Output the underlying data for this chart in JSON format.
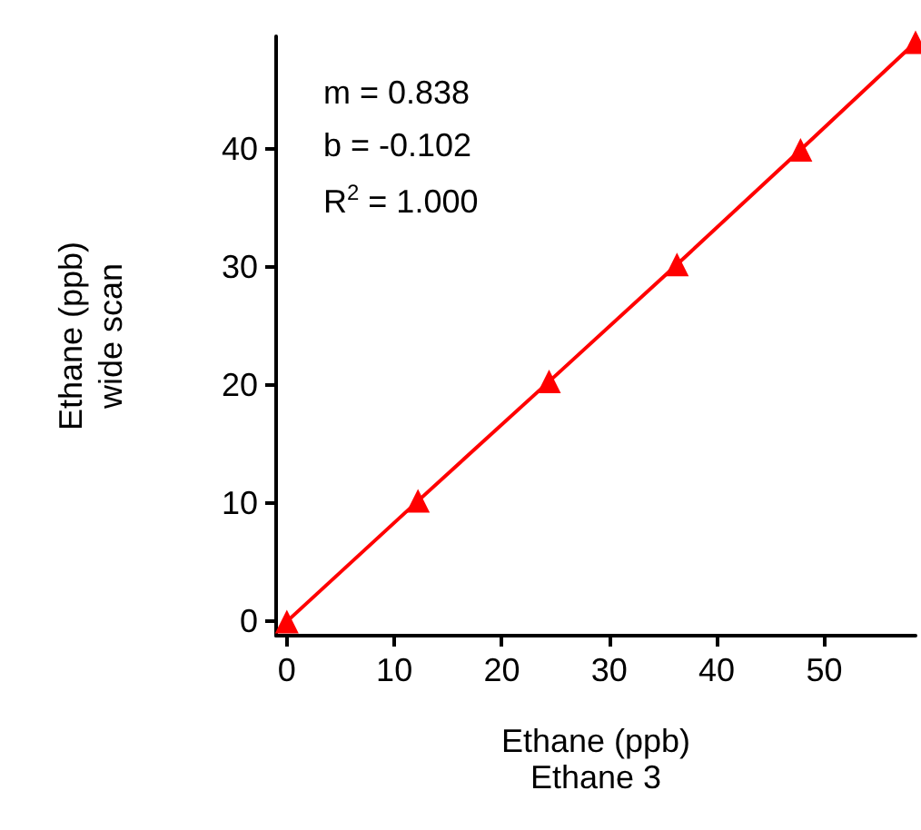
{
  "chart_data": {
    "type": "line",
    "xlabel": "Ethane (ppb)\nEthane 3",
    "ylabel": "Ethane (ppb)\nwide scan",
    "annotations": [
      "m = 0.838",
      "b = -0.102",
      "R$^{2}$ = 1.000"
    ],
    "x": [
      0,
      12.2,
      24.4,
      36.3,
      47.8,
      58.5
    ],
    "series": [
      {
        "color": "#ff0000",
        "values": [
          0,
          10.2,
          20.3,
          30.2,
          39.9,
          49.0
        ]
      }
    ],
    "xlim": [
      -1,
      58.5
    ],
    "xticks": [
      0,
      10,
      20,
      30,
      40,
      50
    ],
    "ylim": [
      -1.2,
      49.5
    ],
    "yticks": [
      0,
      10,
      20,
      30,
      40
    ],
    "grid": false,
    "marker": "triangle",
    "line_style": "solid"
  }
}
